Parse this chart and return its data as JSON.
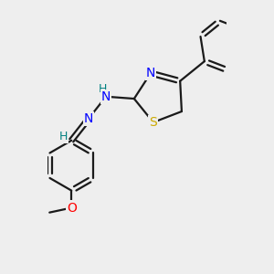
{
  "background_color": "#eeeeee",
  "atom_colors": {
    "N": "#0000ff",
    "S": "#ccaa00",
    "O": "#ff0000",
    "H": "#008080"
  },
  "bond_color": "#1a1a1a",
  "bond_width": 1.6,
  "dbo": 0.06,
  "font_size": 10,
  "font_size_h": 9,
  "xlim": [
    -0.5,
    3.8
  ],
  "ylim": [
    -4.0,
    2.5
  ]
}
